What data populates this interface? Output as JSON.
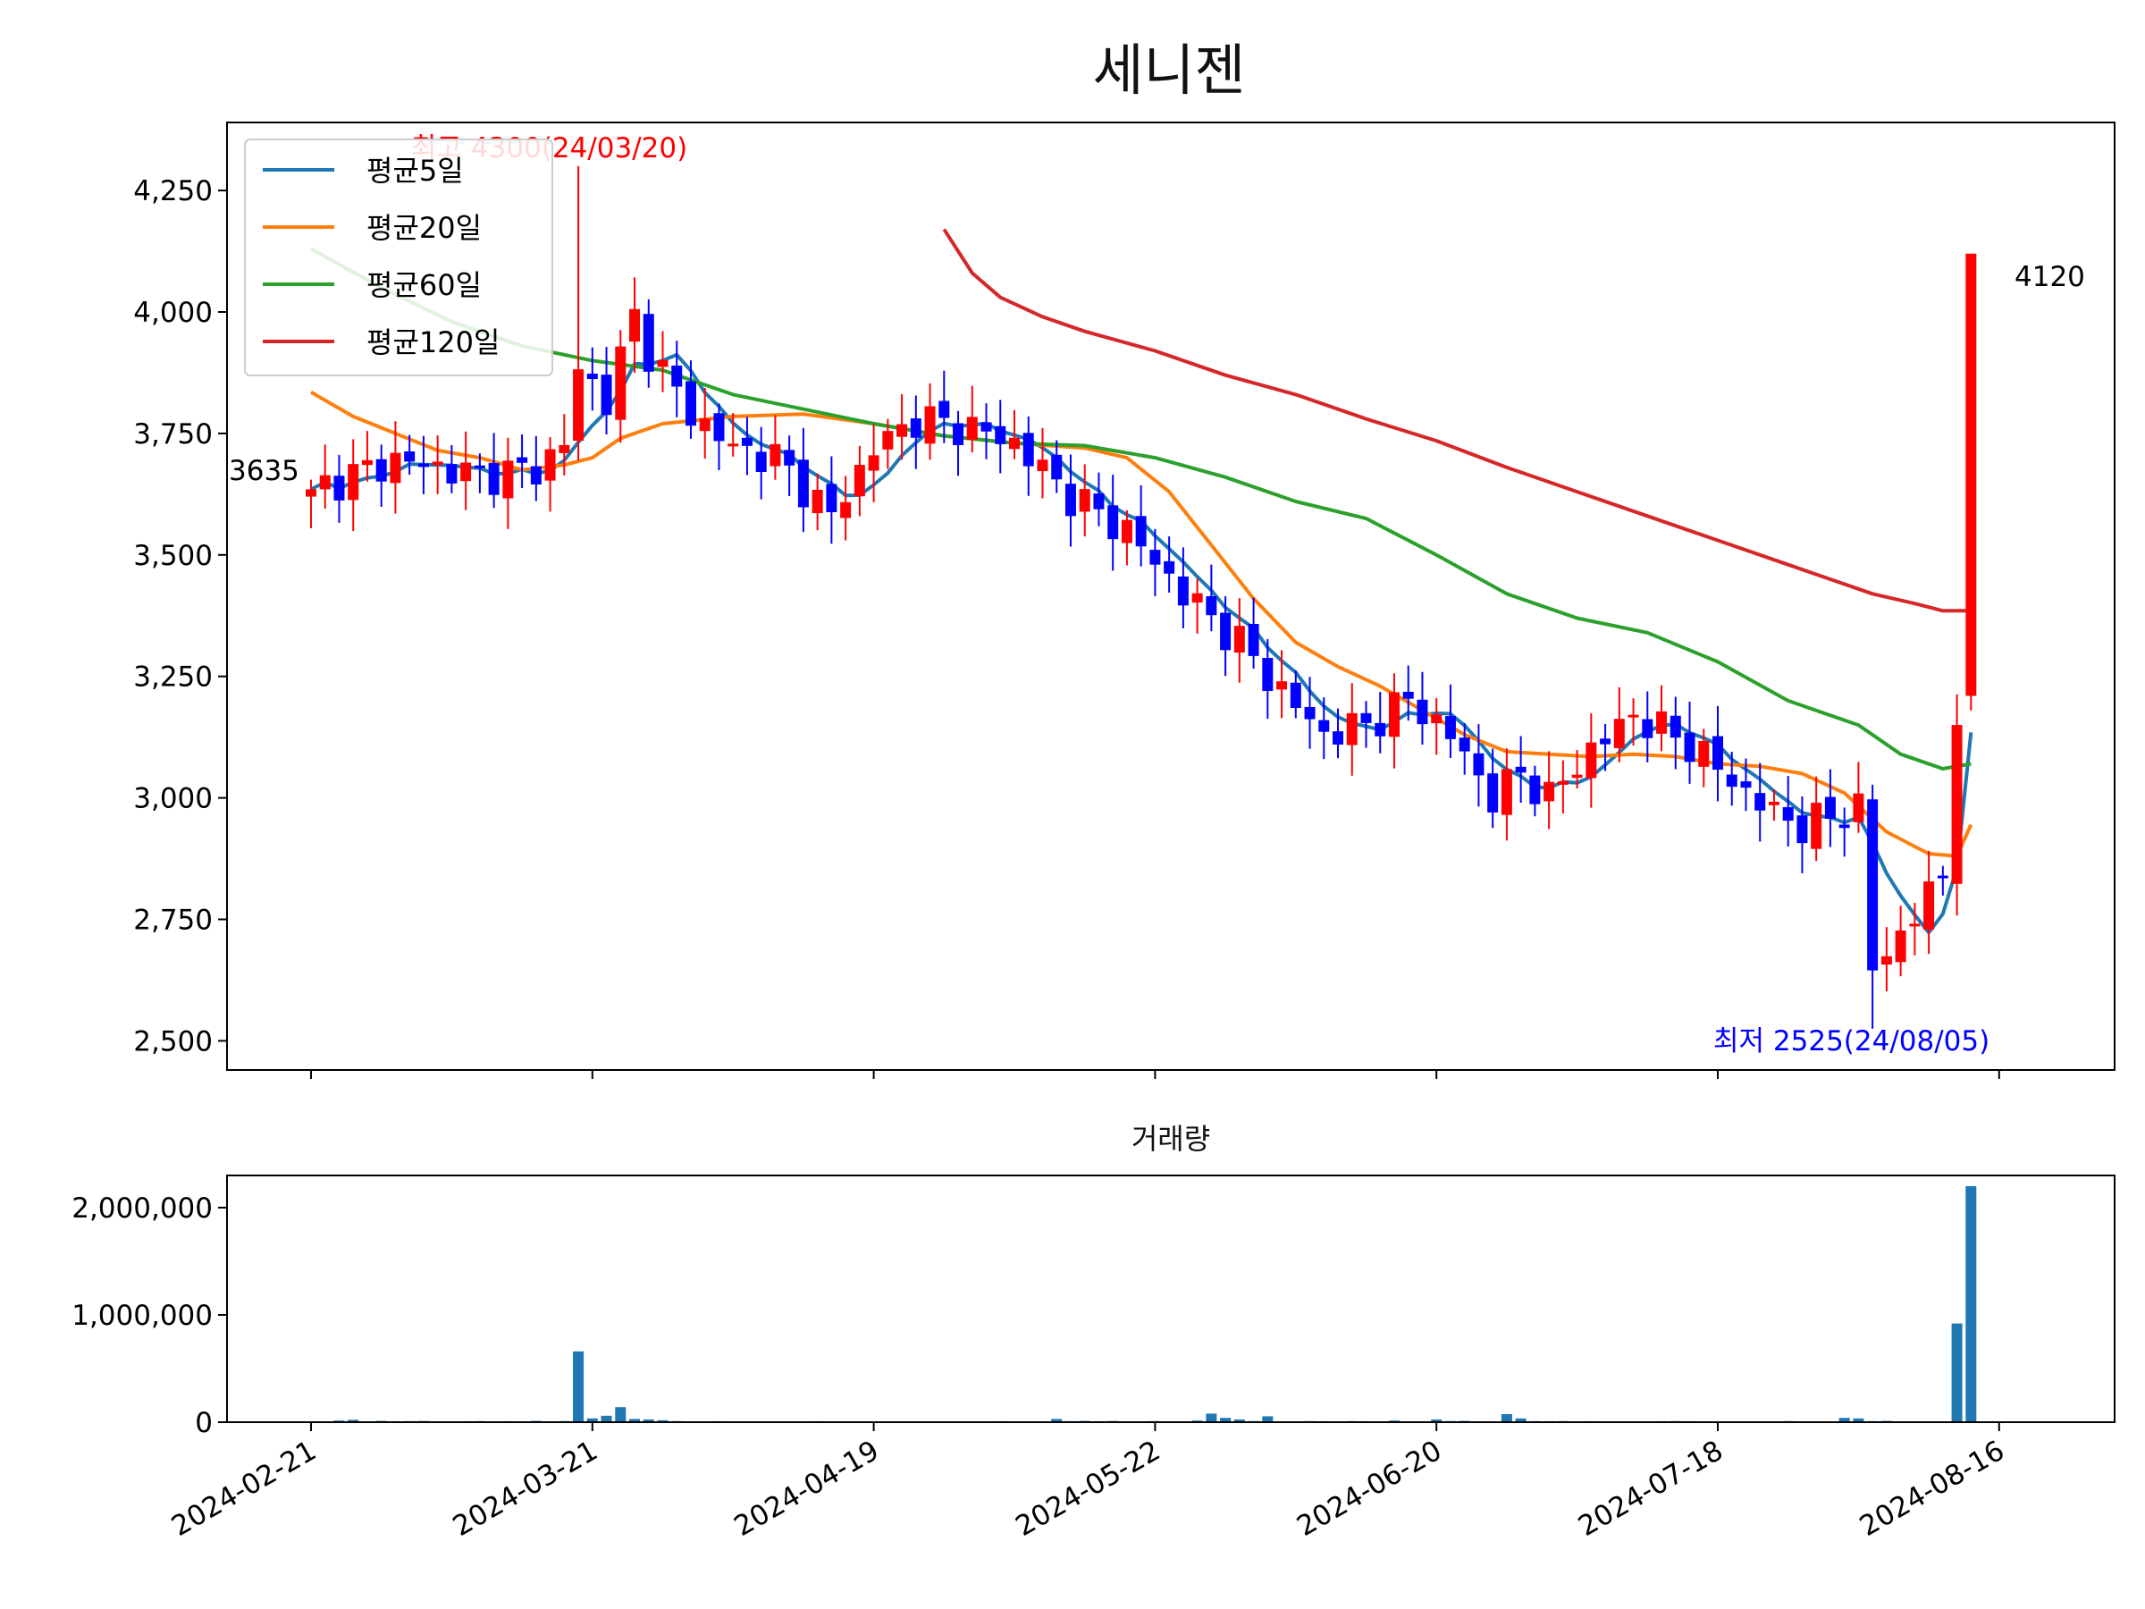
{
  "chart_data": {
    "type": "candlestick",
    "title": "세니젠",
    "x_tick_labels": [
      "2024-02-21",
      "2024-03-21",
      "2024-04-19",
      "2024-05-22",
      "2024-06-20",
      "2024-07-18",
      "2024-08-16"
    ],
    "price_axis": {
      "ylim": [
        2440,
        4390
      ],
      "ticks": [
        2500,
        2750,
        3000,
        3250,
        3500,
        3750,
        4000,
        4250
      ],
      "tick_labels": [
        "2,500",
        "2,750",
        "3,000",
        "3,250",
        "3,500",
        "3,750",
        "4,000",
        "4,250"
      ]
    },
    "volume_axis": {
      "title": "거래량",
      "ylim": [
        0,
        2300000
      ],
      "ticks": [
        0,
        1000000,
        2000000
      ],
      "tick_labels": [
        "0",
        "1,000,000",
        "2,000,000"
      ]
    },
    "legend": {
      "placement": "upper-left",
      "entries": [
        {
          "label": "평균5일",
          "color": "#1f77b4"
        },
        {
          "label": "평균20일",
          "color": "#ff7f0e"
        },
        {
          "label": "평균60일",
          "color": "#2ca02c"
        },
        {
          "label": "평균120일",
          "color": "#d62728"
        }
      ]
    },
    "annotations": {
      "high": {
        "text": "최고 4300(24/03/20)",
        "color": "#ff0000"
      },
      "low": {
        "text": "최저 2525(24/08/05)",
        "color": "#0000ff"
      },
      "first_close": {
        "text": "3635"
      },
      "last_close": {
        "text": "4120"
      }
    },
    "colors": {
      "up": "#ff0000",
      "down": "#0000ff",
      "volume": "#1f77b4"
    },
    "volume_bars": [
      [
        1,
        6000
      ],
      [
        2,
        15000
      ],
      [
        3,
        22000
      ],
      [
        4,
        8000
      ],
      [
        5,
        12000
      ],
      [
        6,
        9000
      ],
      [
        7,
        10000
      ],
      [
        8,
        11000
      ],
      [
        9,
        7000
      ],
      [
        10,
        8000
      ],
      [
        11,
        9000
      ],
      [
        12,
        10000
      ],
      [
        13,
        8000
      ],
      [
        14,
        9000
      ],
      [
        15,
        8000
      ],
      [
        16,
        12000
      ],
      [
        17,
        8000
      ],
      [
        18,
        10000
      ],
      [
        19,
        660000
      ],
      [
        20,
        35000
      ],
      [
        21,
        60000
      ],
      [
        22,
        140000
      ],
      [
        23,
        30000
      ],
      [
        24,
        25000
      ],
      [
        25,
        18000
      ],
      [
        26,
        10000
      ],
      [
        28,
        8000
      ],
      [
        29,
        9000
      ],
      [
        30,
        7000
      ],
      [
        35,
        8000
      ],
      [
        36,
        9000
      ],
      [
        38,
        6000
      ],
      [
        39,
        7000
      ],
      [
        40,
        6000
      ],
      [
        49,
        9000
      ],
      [
        50,
        8000
      ],
      [
        51,
        7000
      ],
      [
        52,
        8000
      ],
      [
        53,
        30000
      ],
      [
        54,
        10000
      ],
      [
        55,
        12000
      ],
      [
        56,
        9000
      ],
      [
        57,
        11000
      ],
      [
        58,
        8000
      ],
      [
        60,
        10000
      ],
      [
        63,
        15000
      ],
      [
        64,
        80000
      ],
      [
        65,
        40000
      ],
      [
        66,
        25000
      ],
      [
        67,
        10000
      ],
      [
        68,
        55000
      ],
      [
        70,
        8000
      ],
      [
        71,
        10000
      ],
      [
        72,
        9000
      ],
      [
        74,
        10000
      ],
      [
        75,
        9000
      ],
      [
        77,
        15000
      ],
      [
        80,
        25000
      ],
      [
        81,
        10000
      ],
      [
        82,
        12000
      ],
      [
        84,
        8000
      ],
      [
        85,
        75000
      ],
      [
        86,
        35000
      ],
      [
        87,
        10000
      ],
      [
        88,
        9000
      ],
      [
        89,
        10000
      ],
      [
        90,
        8000
      ],
      [
        91,
        9000
      ],
      [
        95,
        8000
      ],
      [
        96,
        9000
      ],
      [
        97,
        10000
      ],
      [
        98,
        9000
      ],
      [
        100,
        8000
      ],
      [
        101,
        7000
      ],
      [
        103,
        8000
      ],
      [
        105,
        10000
      ],
      [
        109,
        40000
      ],
      [
        110,
        35000
      ],
      [
        111,
        10000
      ],
      [
        112,
        12000
      ],
      [
        114,
        8000
      ],
      [
        117,
        920000
      ],
      [
        118,
        2200000
      ]
    ]
  }
}
